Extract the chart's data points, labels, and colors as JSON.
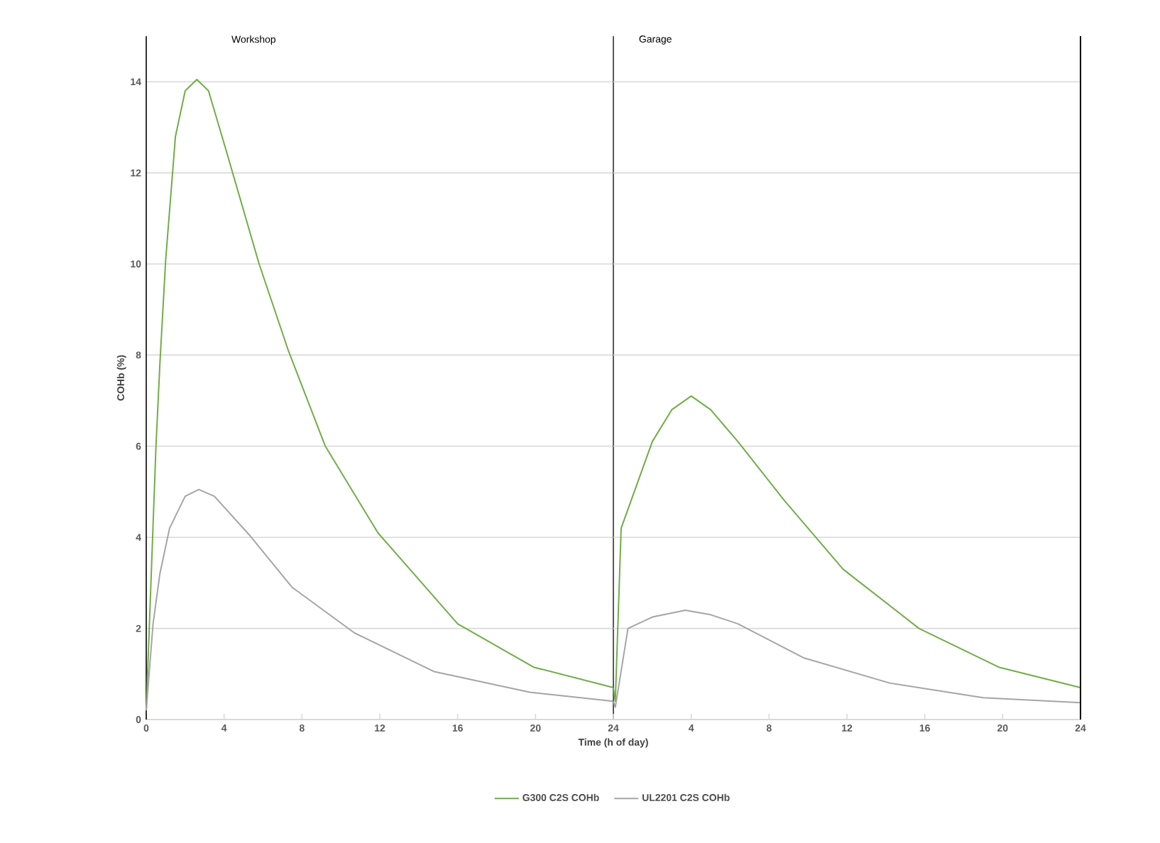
{
  "chart_data": [
    {
      "type": "line",
      "title": "Workshop",
      "xlabel": "Time (h of day)",
      "ylabel": "COHb (%)",
      "series": [
        {
          "name": "G300 C2S COHb",
          "color": "#70ad47",
          "x": [
            0,
            0.5,
            0.7,
            1.0,
            1.5,
            2.0,
            2.6,
            3.2,
            4.1,
            5.8,
            7.3,
            9.2,
            11.9,
            16.0,
            19.9,
            24.0
          ],
          "values": [
            0.2,
            6.0,
            7.8,
            10.1,
            12.8,
            13.8,
            14.05,
            13.8,
            12.5,
            10.0,
            8.1,
            6.0,
            4.1,
            2.1,
            1.15,
            0.7
          ]
        },
        {
          "name": "UL2201 C2S COHb",
          "color": "#a5a5a5",
          "x": [
            0,
            0.35,
            0.7,
            1.2,
            2.0,
            2.7,
            3.5,
            5.3,
            7.5,
            10.7,
            14.8,
            19.7,
            24.0
          ],
          "values": [
            0.2,
            2.1,
            3.2,
            4.2,
            4.9,
            5.05,
            4.9,
            4.05,
            2.9,
            1.9,
            1.05,
            0.6,
            0.4
          ]
        }
      ],
      "xlim": [
        0,
        24
      ],
      "ylim": [
        0,
        15
      ],
      "xticks": [
        0,
        4,
        8,
        12,
        16,
        20,
        24
      ],
      "yticks": [
        0,
        2,
        4,
        6,
        8,
        10,
        12,
        14
      ],
      "ref_lines": [
        {
          "axis": "x",
          "value": 24,
          "color": "#595959"
        }
      ],
      "grid": "y",
      "legend": "bottom",
      "line_style": "solid",
      "marker": "none"
    },
    {
      "type": "line",
      "title": "Garage",
      "series": [
        {
          "color": "#70ad47",
          "x": [
            0,
            0.1,
            0.4,
            2.0,
            3.0,
            4.0,
            5.0,
            6.4,
            8.8,
            11.8,
            15.7,
            19.8,
            24.0
          ],
          "values": [
            0.7,
            0.4,
            4.2,
            6.1,
            6.8,
            7.1,
            6.8,
            6.1,
            4.8,
            3.3,
            2.0,
            1.15,
            0.7
          ]
        },
        {
          "color": "#a5a5a5",
          "x": [
            0,
            0.1,
            0.75,
            2.0,
            3.7,
            5.0,
            6.4,
            9.8,
            14.2,
            19.0,
            24.0
          ],
          "values": [
            0.4,
            0.27,
            2.0,
            2.25,
            2.4,
            2.3,
            2.1,
            1.35,
            0.8,
            0.48,
            0.37
          ]
        }
      ],
      "xlim": [
        0,
        24
      ],
      "ylim": [
        0,
        15
      ],
      "xticks": [
        {
          "value": 0,
          "label": null
        },
        4,
        8,
        12,
        16,
        20,
        24
      ],
      "yticks": [
        0,
        2,
        4,
        6,
        8,
        10,
        12,
        14
      ],
      "ref_lines": [
        {
          "axis": "x",
          "value": 24,
          "color": "#000000"
        }
      ],
      "grid": "y",
      "tick_labels": "x",
      "line_style": "solid",
      "marker": "none"
    }
  ]
}
